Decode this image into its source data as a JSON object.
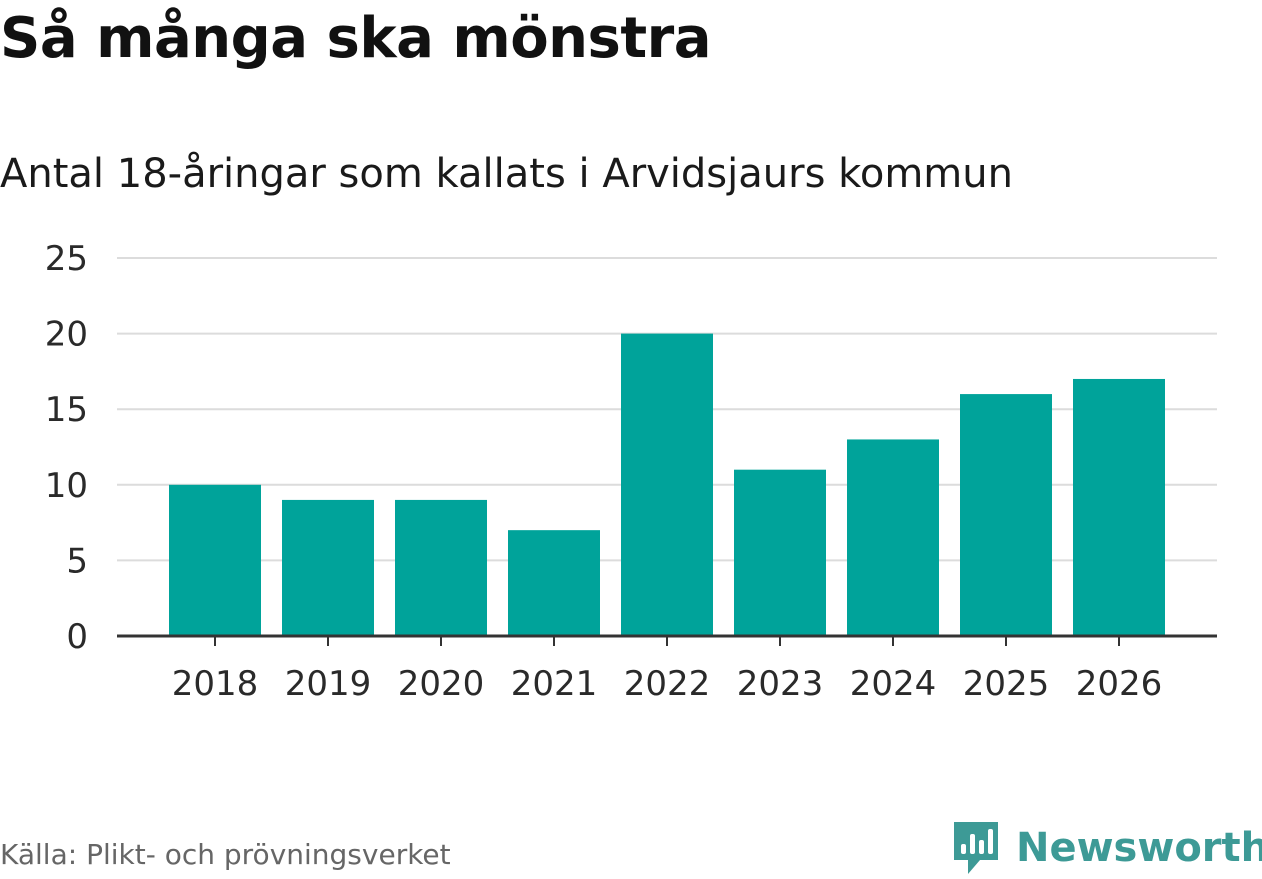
{
  "header": {
    "title": "Så många ska mönstra",
    "subtitle": "Antal 18-åringar som kallats i Arvidsjaurs kommun"
  },
  "chart_data": {
    "type": "bar",
    "categories": [
      "2018",
      "2019",
      "2020",
      "2021",
      "2022",
      "2023",
      "2024",
      "2025",
      "2026"
    ],
    "values": [
      10,
      9,
      9,
      7,
      20,
      11,
      13,
      16,
      17
    ],
    "ylim": [
      0,
      25
    ],
    "yticks": [
      0,
      5,
      10,
      15,
      20,
      25
    ],
    "ytick_labels": [
      "0",
      "5",
      "10",
      "15",
      "20",
      "25"
    ],
    "grid": true,
    "title": "",
    "xlabel": "",
    "ylabel": "",
    "colors": {
      "bar": "#00a39a",
      "grid": "#dcdcdc",
      "axis": "#333333"
    }
  },
  "footer": {
    "source": "Källa: Plikt- och prövningsverket",
    "brand": "Newsworthy",
    "brand_color": "#3d9a96",
    "brand_icon": "newsworthy-logo-icon"
  }
}
